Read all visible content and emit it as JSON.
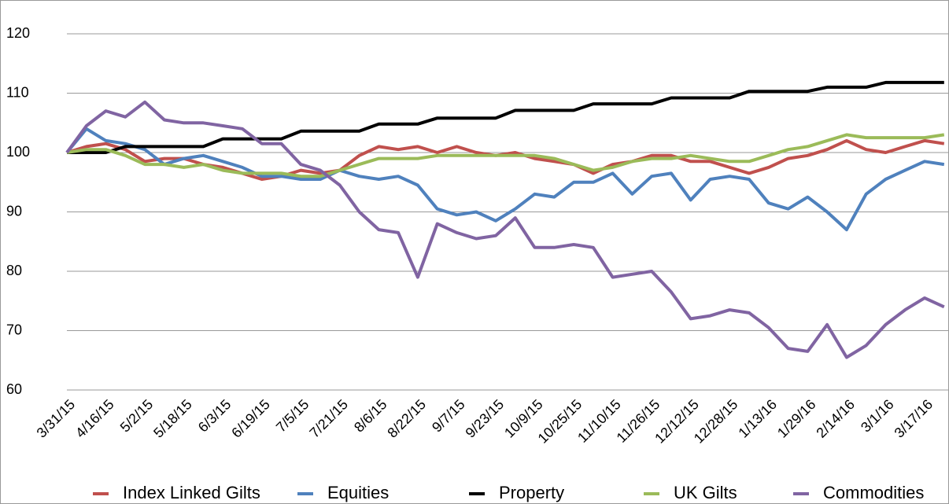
{
  "chart_data": {
    "type": "line",
    "categories": [
      "3/31/15",
      null,
      "4/16/15",
      null,
      "5/2/15",
      null,
      "5/18/15",
      null,
      "6/3/15",
      null,
      "6/19/15",
      null,
      "7/5/15",
      null,
      "7/21/15",
      null,
      "8/6/15",
      null,
      "8/22/15",
      null,
      "9/7/15",
      null,
      "9/23/15",
      null,
      "10/9/15",
      null,
      "10/25/15",
      null,
      "11/10/15",
      null,
      "11/26/15",
      null,
      "12/12/15",
      null,
      "12/28/15",
      null,
      "1/13/16",
      null,
      "1/29/16",
      null,
      "2/14/16",
      null,
      "3/1/16",
      null,
      "3/17/16",
      null
    ],
    "series": [
      {
        "name": "Index Linked Gilts",
        "color": "#c0504d",
        "values": [
          100,
          101,
          101.5,
          100.5,
          98.5,
          99,
          99,
          98,
          97.5,
          96.5,
          95.5,
          96,
          97,
          96.5,
          97,
          99.5,
          101,
          100.5,
          101,
          100,
          101,
          100,
          99.5,
          100,
          99,
          98.5,
          98,
          96.5,
          98,
          98.5,
          99.5,
          99.5,
          98.5,
          98.5,
          97.5,
          96.5,
          97.5,
          99,
          99.5,
          100.5,
          102,
          100.5,
          100,
          101,
          102,
          101.5
        ]
      },
      {
        "name": "Equities",
        "color": "#4f81bd",
        "values": [
          100,
          104,
          102,
          101.5,
          100.5,
          98,
          99,
          99.5,
          98.5,
          97.5,
          96,
          96,
          95.5,
          95.5,
          97,
          96,
          95.5,
          96,
          94.5,
          90.5,
          89.5,
          90,
          88.5,
          90.5,
          93,
          92.5,
          95,
          95,
          96.5,
          93,
          96,
          96.5,
          92,
          95.5,
          96,
          95.5,
          91.5,
          90.5,
          92.5,
          90,
          87,
          93,
          95.5,
          97,
          98.5,
          98
        ]
      },
      {
        "name": "Property",
        "color": "#000000",
        "values": [
          100,
          100,
          100,
          101,
          101,
          101,
          101,
          101,
          102.3,
          102.3,
          102.3,
          102.3,
          103.6,
          103.6,
          103.6,
          103.6,
          104.8,
          104.8,
          104.8,
          105.8,
          105.8,
          105.8,
          105.8,
          107.1,
          107.1,
          107.1,
          107.1,
          108.2,
          108.2,
          108.2,
          108.2,
          109.2,
          109.2,
          109.2,
          109.2,
          110.3,
          110.3,
          110.3,
          110.3,
          111,
          111,
          111,
          111.8,
          111.8,
          111.8,
          111.8
        ]
      },
      {
        "name": "UK Gilts",
        "color": "#9bbb59",
        "values": [
          100,
          100.5,
          100.5,
          99.5,
          98,
          98,
          97.5,
          98,
          97,
          96.5,
          96.5,
          96.5,
          96,
          96,
          97,
          98,
          99,
          99,
          99,
          99.5,
          99.5,
          99.5,
          99.5,
          99.5,
          99.5,
          99,
          98,
          97,
          97.5,
          98.5,
          99,
          99,
          99.5,
          99,
          98.5,
          98.5,
          99.5,
          100.5,
          101,
          102,
          103,
          102.5,
          102.5,
          102.5,
          102.5,
          103
        ]
      },
      {
        "name": "Commodities",
        "color": "#8064a2",
        "values": [
          100,
          104.5,
          107,
          106,
          108.5,
          105.5,
          105,
          105,
          104.5,
          104,
          101.5,
          101.5,
          98,
          97,
          94.5,
          90,
          87,
          86.5,
          79,
          88,
          86.5,
          85.5,
          86,
          89,
          84,
          84,
          84.5,
          84,
          79,
          79.5,
          80,
          76.5,
          72,
          72.5,
          73.5,
          73,
          70.5,
          67,
          66.5,
          71,
          65.5,
          67.5,
          71,
          73.5,
          75.5,
          74
        ]
      }
    ],
    "ylim": [
      60,
      120
    ],
    "yticks": [
      60,
      70,
      80,
      90,
      100,
      110,
      120
    ],
    "grid": true,
    "legend": "bottom"
  }
}
